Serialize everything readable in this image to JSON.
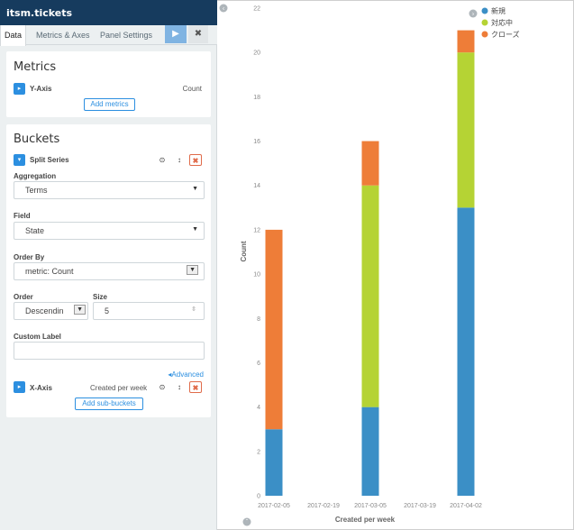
{
  "sidebar": {
    "index_name": "itsm.tickets",
    "tabs": [
      {
        "label": "Data"
      },
      {
        "label": "Metrics & Axes"
      },
      {
        "label": "Panel Settings"
      }
    ],
    "apply_icon": "play-icon",
    "discard_icon": "close-icon",
    "metrics": {
      "title": "Metrics",
      "y_axis": {
        "title": "Y-Axis",
        "value": "Count"
      },
      "add_label": "Add metrics"
    },
    "buckets": {
      "title": "Buckets",
      "split_series": {
        "title": "Split Series",
        "aggregation_label": "Aggregation",
        "aggregation_value": "Terms",
        "field_label": "Field",
        "field_value": "State",
        "order_by_label": "Order By",
        "order_by_value": "metric: Count",
        "order_label": "Order",
        "order_value": "Descendin",
        "size_label": "Size",
        "size_value": "5",
        "custom_label_label": "Custom Label",
        "custom_label_value": "",
        "advanced_label": "Advanced"
      },
      "x_axis": {
        "title": "X-Axis",
        "value": "Created per week"
      },
      "add_sub_label": "Add sub-buckets"
    }
  },
  "chart_data": {
    "type": "bar",
    "stacked": true,
    "categories": [
      "2017-02-05",
      "2017-02-19",
      "2017-03-05",
      "2017-03-19",
      "2017-04-02"
    ],
    "series": [
      {
        "name": "新規",
        "color": "#3b8fc6",
        "values": [
          3,
          0,
          4,
          0,
          13
        ]
      },
      {
        "name": "対応中",
        "color": "#b5d334",
        "values": [
          0,
          0,
          10,
          0,
          7
        ]
      },
      {
        "name": "クローズ",
        "color": "#ee7d38",
        "values": [
          9,
          0,
          2,
          0,
          1
        ]
      }
    ],
    "bar_categories": [
      "2017-02-05",
      "2017-03-05",
      "2017-04-02"
    ],
    "xlabel": "Created per week",
    "ylabel": "Count",
    "ylim": [
      0,
      22
    ],
    "yticks": [
      0,
      2,
      4,
      6,
      8,
      10,
      12,
      14,
      16,
      18,
      20,
      22
    ],
    "grid": false,
    "legend_position": "top-right"
  }
}
